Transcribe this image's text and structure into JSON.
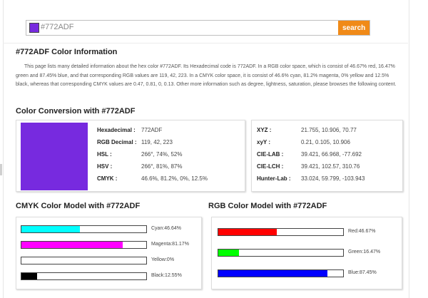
{
  "search": {
    "value": "#772ADF",
    "button_label": "search",
    "swatch_color": "#772ADF"
  },
  "info": {
    "title": "#772ADF Color Information",
    "description": "This page lists many detailed information about the hex color #772ADF. Its Hexadecimal code is 772ADF. In a RGB color space, which is consist of 46.67% red, 16.47% green and 87.45% blue, and that corresponding RGB values are 119, 42, 223. In a CMYK color space, it is consist of 46.6% cyan, 81.2% magenta, 0% yellow and 12.5% black, whereas that corresponding CMYK values are 0.47, 0.81, 0, 0.13. Other more information such as degree, lightness, saturation, please browses the following content."
  },
  "conversion": {
    "title": "Color Conversion with #772ADF",
    "swatch_color": "#772ADF",
    "left": [
      {
        "label": "Hexadecimal :",
        "value": "772ADF"
      },
      {
        "label": "RGB Decimal :",
        "value": "119, 42, 223"
      },
      {
        "label": "HSL :",
        "value": "266°, 74%, 52%"
      },
      {
        "label": "HSV :",
        "value": "266°, 81%, 87%"
      },
      {
        "label": "CMYK :",
        "value": "46.6%, 81.2%, 0%, 12.5%"
      }
    ],
    "right": [
      {
        "label": "XYZ :",
        "value": "21.755, 10.906, 70.77"
      },
      {
        "label": "xyY :",
        "value": "0.21, 0.105, 10.906"
      },
      {
        "label": "CIE-LAB :",
        "value": "39.421, 66.968, -77.692"
      },
      {
        "label": "CIE-LCH :",
        "value": "39.421, 102.57, 310.76"
      },
      {
        "label": "Hunter-Lab :",
        "value": "33.024, 59.799, -103.943"
      }
    ]
  },
  "cmyk_model": {
    "title": "CMYK Color Model with #772ADF",
    "bars": [
      {
        "label": "Cyan:46.64%",
        "fraction": 0.4664,
        "color": "#00ffff"
      },
      {
        "label": "Magenta:81.17%",
        "fraction": 0.8117,
        "color": "#ff00ff"
      },
      {
        "label": "Yellow:0%",
        "fraction": 0,
        "color": "#ffff00"
      },
      {
        "label": "Black:12.55%",
        "fraction": 0.1255,
        "color": "#000000"
      }
    ]
  },
  "rgb_model": {
    "title": "RGB Color Model with #772ADF",
    "bars": [
      {
        "label": "Red:46.67%",
        "fraction": 0.4667,
        "color": "#ff0000"
      },
      {
        "label": "Green:16.47%",
        "fraction": 0.1647,
        "color": "#00ff00"
      },
      {
        "label": "Blue:87.45%",
        "fraction": 0.8745,
        "color": "#0000ff"
      }
    ]
  }
}
